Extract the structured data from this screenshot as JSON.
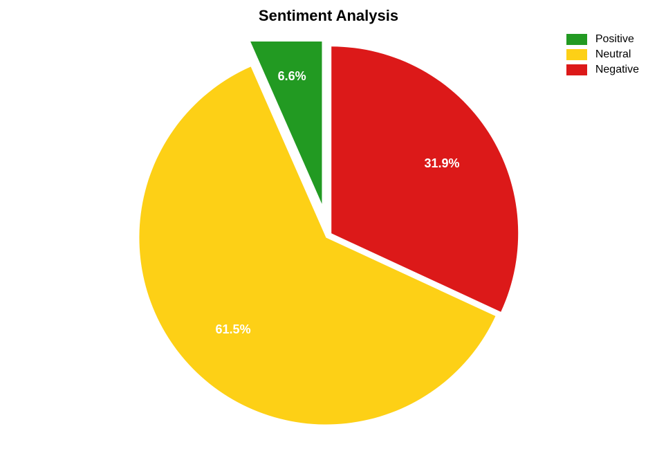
{
  "sentiment_chart": {
    "type": "pie",
    "title": "Sentiment Analysis",
    "title_fontsize": 22,
    "title_fontweight": "bold",
    "background_color": "#ffffff",
    "slices": [
      {
        "label": "Positive",
        "value": 6.6,
        "display_label": "6.6%",
        "color": "#229a22",
        "exploded": true
      },
      {
        "label": "Neutral",
        "value": 61.5,
        "display_label": "61.5%",
        "color": "#fdd016",
        "exploded": false
      },
      {
        "label": "Negative",
        "value": 31.9,
        "display_label": "31.9%",
        "color": "#dc1919",
        "exploded": false
      }
    ],
    "legend": {
      "position": "top-right",
      "items": [
        {
          "label": "Positive",
          "color": "#229a22"
        },
        {
          "label": "Neutral",
          "color": "#fdd016"
        },
        {
          "label": "Negative",
          "color": "#dc1919"
        }
      ],
      "fontsize": 16
    },
    "slice_label_fontsize": 18,
    "slice_label_color": "#ffffff",
    "start_angle_deg": 90,
    "direction": "counterclockwise",
    "explode_offset": 0.05,
    "gap_between_slices": true
  }
}
